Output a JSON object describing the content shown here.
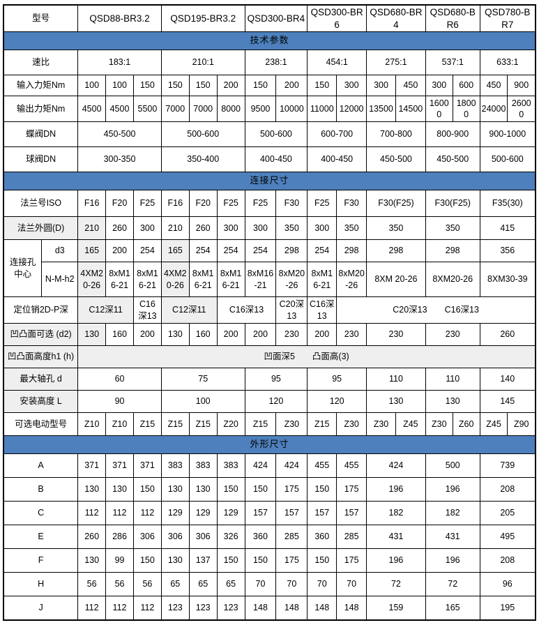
{
  "colors": {
    "section_blue": "#4d80bc",
    "cell_gray": "#efefef",
    "border_black": "#000000"
  },
  "table": {
    "rows": [
      {
        "kind": "data",
        "model_row": true,
        "label": "型号",
        "cells": [
          {
            "t": "QSD88-BR3.2",
            "s": 3
          },
          {
            "t": "QSD195-BR3.2",
            "s": 3
          },
          {
            "t": "QSD300-BR4",
            "s": 2
          },
          {
            "t": "QSD300-BR6",
            "s": 2
          },
          {
            "t": "QSD680-BR4",
            "s": 2
          },
          {
            "t": "QSD680-BR6",
            "s": 2
          },
          {
            "t": "QSD780-BR7",
            "s": 2
          }
        ]
      },
      {
        "kind": "section",
        "label": "技术参数"
      },
      {
        "kind": "data",
        "label": "速比",
        "cells": [
          {
            "t": "183:1",
            "s": 3
          },
          {
            "t": "210:1",
            "s": 3
          },
          {
            "t": "238:1",
            "s": 2
          },
          {
            "t": "454:1",
            "s": 2
          },
          {
            "t": "275:1",
            "s": 2
          },
          {
            "t": "537:1",
            "s": 2
          },
          {
            "t": "633:1",
            "s": 2
          }
        ]
      },
      {
        "kind": "data",
        "label": "输入力矩Nm",
        "cells": [
          {
            "t": "100"
          },
          {
            "t": "100"
          },
          {
            "t": "150"
          },
          {
            "t": "150"
          },
          {
            "t": "150"
          },
          {
            "t": "200"
          },
          {
            "t": "150"
          },
          {
            "t": "200"
          },
          {
            "t": "150"
          },
          {
            "t": "300"
          },
          {
            "t": "300"
          },
          {
            "t": "450"
          },
          {
            "t": "300"
          },
          {
            "t": "600"
          },
          {
            "t": "450"
          },
          {
            "t": "900"
          }
        ]
      },
      {
        "kind": "data",
        "label": "输出力矩Nm",
        "cells": [
          {
            "t": "4500"
          },
          {
            "t": "4500"
          },
          {
            "t": "5500"
          },
          {
            "t": "7000"
          },
          {
            "t": "7000"
          },
          {
            "t": "8000"
          },
          {
            "t": "9500"
          },
          {
            "t": "10000"
          },
          {
            "t": "11000"
          },
          {
            "t": "12000"
          },
          {
            "t": "13500"
          },
          {
            "t": "14500"
          },
          {
            "t": "16000"
          },
          {
            "t": "18000"
          },
          {
            "t": "24000"
          },
          {
            "t": "26000"
          }
        ]
      },
      {
        "kind": "data",
        "label": "蝶阀DN",
        "cells": [
          {
            "t": "450-500",
            "s": 3
          },
          {
            "t": "500-600",
            "s": 3
          },
          {
            "t": "500-600",
            "s": 2
          },
          {
            "t": "600-700",
            "s": 2
          },
          {
            "t": "700-800",
            "s": 2
          },
          {
            "t": "800-900",
            "s": 2
          },
          {
            "t": "900-1000",
            "s": 2
          }
        ]
      },
      {
        "kind": "data",
        "label": "球阀DN",
        "cells": [
          {
            "t": "300-350",
            "s": 3
          },
          {
            "t": "350-400",
            "s": 3
          },
          {
            "t": "400-450",
            "s": 2
          },
          {
            "t": "400-450",
            "s": 2
          },
          {
            "t": "450-500",
            "s": 2
          },
          {
            "t": "450-500",
            "s": 2
          },
          {
            "t": "500-600",
            "s": 2
          }
        ]
      },
      {
        "kind": "section",
        "label": "连接尺寸"
      },
      {
        "kind": "data",
        "label": "法兰号ISO",
        "cells": [
          {
            "t": "F16"
          },
          {
            "t": "F20"
          },
          {
            "t": "F25"
          },
          {
            "t": "F16"
          },
          {
            "t": "F20"
          },
          {
            "t": "F25"
          },
          {
            "t": "F25"
          },
          {
            "t": "F30"
          },
          {
            "t": "F25"
          },
          {
            "t": "F30"
          },
          {
            "t": "F30(F25)",
            "s": 2
          },
          {
            "t": "F30(F25)",
            "s": 2
          },
          {
            "t": "F35(30)",
            "s": 2
          }
        ]
      },
      {
        "kind": "data",
        "label": "法兰外圆(D)",
        "label_gray": true,
        "cells": [
          {
            "t": "210",
            "g": true
          },
          {
            "t": "260"
          },
          {
            "t": "300"
          },
          {
            "t": "210"
          },
          {
            "t": "260"
          },
          {
            "t": "300"
          },
          {
            "t": "300"
          },
          {
            "t": "350"
          },
          {
            "t": "300"
          },
          {
            "t": "350"
          },
          {
            "t": "350",
            "s": 2
          },
          {
            "t": "350",
            "s": 2
          },
          {
            "t": "415",
            "s": 2
          }
        ]
      },
      {
        "kind": "data",
        "group_label": "连接孔中心",
        "group_rowspan": 2,
        "sublabel": "d3",
        "cells": [
          {
            "t": "165",
            "g": true
          },
          {
            "t": "200"
          },
          {
            "t": "254"
          },
          {
            "t": "165",
            "g": true
          },
          {
            "t": "254"
          },
          {
            "t": "254"
          },
          {
            "t": "254"
          },
          {
            "t": "298"
          },
          {
            "t": "254"
          },
          {
            "t": "298"
          },
          {
            "t": "298",
            "s": 2
          },
          {
            "t": "298",
            "s": 2
          },
          {
            "t": "356",
            "s": 2
          }
        ]
      },
      {
        "kind": "data",
        "sublabel": "N-M-h2",
        "cells": [
          {
            "t": "4XM20-26",
            "g": true
          },
          {
            "t": "8xM16-21"
          },
          {
            "t": "8xM16-21"
          },
          {
            "t": "4XM20-26",
            "g": true
          },
          {
            "t": "8xM16-21"
          },
          {
            "t": "8xM16-21"
          },
          {
            "t": "8xM16-21"
          },
          {
            "t": "8xM20-26"
          },
          {
            "t": "8xM16-21"
          },
          {
            "t": "8xM20-26"
          },
          {
            "t": "8XM 20-26",
            "s": 2
          },
          {
            "t": "8XM20-26",
            "s": 2
          },
          {
            "t": "8XM30-39",
            "s": 2
          }
        ]
      },
      {
        "kind": "data",
        "label": "定位销2D-P深",
        "cells": [
          {
            "t": "C12深11",
            "s": 2,
            "g": true
          },
          {
            "t": "C16深13"
          },
          {
            "t": "C12深11",
            "s": 2,
            "g": true
          },
          {
            "t": "C16深13",
            "s": 2
          },
          {
            "t": "C20深13"
          },
          {
            "t": "C16深13"
          },
          {
            "t": "C20深13　　C16深13",
            "s": 7
          }
        ]
      },
      {
        "kind": "data",
        "label": "凹凸面可选 (d2)",
        "label_gray": true,
        "cells": [
          {
            "t": "130",
            "g": true
          },
          {
            "t": "160"
          },
          {
            "t": "200"
          },
          {
            "t": "130"
          },
          {
            "t": "160"
          },
          {
            "t": "200"
          },
          {
            "t": "200"
          },
          {
            "t": "230"
          },
          {
            "t": "200"
          },
          {
            "t": "230"
          },
          {
            "t": "230",
            "s": 2
          },
          {
            "t": "230",
            "s": 2
          },
          {
            "t": "260",
            "s": 2
          }
        ]
      },
      {
        "kind": "data",
        "label": "凹凸面高度h1 (h)",
        "label_gray": true,
        "cells": [
          {
            "t": "凹面深5　　凸面高(3)",
            "s": 16,
            "g": true
          }
        ]
      },
      {
        "kind": "data",
        "label": "最大轴孔 d",
        "label_gray": true,
        "cells": [
          {
            "t": "60",
            "s": 3
          },
          {
            "t": "75",
            "s": 3
          },
          {
            "t": "95",
            "s": 2
          },
          {
            "t": "95",
            "s": 2
          },
          {
            "t": "110",
            "s": 2
          },
          {
            "t": "110",
            "s": 2
          },
          {
            "t": "140",
            "s": 2
          }
        ]
      },
      {
        "kind": "data",
        "label": "安装高度 L",
        "label_gray": true,
        "cells": [
          {
            "t": "90",
            "s": 3
          },
          {
            "t": "100",
            "s": 3
          },
          {
            "t": "120",
            "s": 2
          },
          {
            "t": "120",
            "s": 2
          },
          {
            "t": "130",
            "s": 2
          },
          {
            "t": "130",
            "s": 2
          },
          {
            "t": "145",
            "s": 2
          }
        ]
      },
      {
        "kind": "data",
        "label": "可选电动型号",
        "cells": [
          {
            "t": "Z10"
          },
          {
            "t": "Z10"
          },
          {
            "t": "Z15"
          },
          {
            "t": "Z15"
          },
          {
            "t": "Z15"
          },
          {
            "t": "Z20"
          },
          {
            "t": "Z15"
          },
          {
            "t": "Z30"
          },
          {
            "t": "Z15"
          },
          {
            "t": "Z30"
          },
          {
            "t": "Z30"
          },
          {
            "t": "Z45"
          },
          {
            "t": "Z30"
          },
          {
            "t": "Z60"
          },
          {
            "t": "Z45"
          },
          {
            "t": "Z90"
          }
        ]
      },
      {
        "kind": "section",
        "label": "外形尺寸"
      },
      {
        "kind": "data",
        "label": "A",
        "cells": [
          {
            "t": "371"
          },
          {
            "t": "371"
          },
          {
            "t": "371"
          },
          {
            "t": "383"
          },
          {
            "t": "383"
          },
          {
            "t": "383"
          },
          {
            "t": "424"
          },
          {
            "t": "424"
          },
          {
            "t": "455"
          },
          {
            "t": "455"
          },
          {
            "t": "424",
            "s": 2
          },
          {
            "t": "500",
            "s": 2
          },
          {
            "t": "739",
            "s": 2
          }
        ]
      },
      {
        "kind": "data",
        "label": "B",
        "cells": [
          {
            "t": "130"
          },
          {
            "t": "130"
          },
          {
            "t": "150"
          },
          {
            "t": "130"
          },
          {
            "t": "130"
          },
          {
            "t": "150"
          },
          {
            "t": "150"
          },
          {
            "t": "175"
          },
          {
            "t": "150"
          },
          {
            "t": "175"
          },
          {
            "t": "196",
            "s": 2
          },
          {
            "t": "196",
            "s": 2
          },
          {
            "t": "208",
            "s": 2
          }
        ]
      },
      {
        "kind": "data",
        "label": "C",
        "cells": [
          {
            "t": "112"
          },
          {
            "t": "112"
          },
          {
            "t": "112"
          },
          {
            "t": "129"
          },
          {
            "t": "129"
          },
          {
            "t": "129"
          },
          {
            "t": "157"
          },
          {
            "t": "157"
          },
          {
            "t": "157"
          },
          {
            "t": "157"
          },
          {
            "t": "182",
            "s": 2
          },
          {
            "t": "182",
            "s": 2
          },
          {
            "t": "205",
            "s": 2
          }
        ]
      },
      {
        "kind": "data",
        "label": "E",
        "cells": [
          {
            "t": "260"
          },
          {
            "t": "286"
          },
          {
            "t": "306"
          },
          {
            "t": "306"
          },
          {
            "t": "306"
          },
          {
            "t": "326"
          },
          {
            "t": "360"
          },
          {
            "t": "285"
          },
          {
            "t": "360"
          },
          {
            "t": "285"
          },
          {
            "t": "431",
            "s": 2
          },
          {
            "t": "431",
            "s": 2
          },
          {
            "t": "495",
            "s": 2
          }
        ]
      },
      {
        "kind": "data",
        "label": "F",
        "cells": [
          {
            "t": "130"
          },
          {
            "t": "99"
          },
          {
            "t": "150"
          },
          {
            "t": "130"
          },
          {
            "t": "137"
          },
          {
            "t": "150"
          },
          {
            "t": "150"
          },
          {
            "t": "175"
          },
          {
            "t": "150"
          },
          {
            "t": "175"
          },
          {
            "t": "196",
            "s": 2
          },
          {
            "t": "196",
            "s": 2
          },
          {
            "t": "208",
            "s": 2
          }
        ]
      },
      {
        "kind": "data",
        "label": "H",
        "cells": [
          {
            "t": "56"
          },
          {
            "t": "56"
          },
          {
            "t": "56"
          },
          {
            "t": "65"
          },
          {
            "t": "65"
          },
          {
            "t": "65"
          },
          {
            "t": "70"
          },
          {
            "t": "70"
          },
          {
            "t": "70"
          },
          {
            "t": "70"
          },
          {
            "t": "72",
            "s": 2
          },
          {
            "t": "72",
            "s": 2
          },
          {
            "t": "96",
            "s": 2
          }
        ]
      },
      {
        "kind": "data",
        "label": "J",
        "cells": [
          {
            "t": "112"
          },
          {
            "t": "112"
          },
          {
            "t": "112"
          },
          {
            "t": "123"
          },
          {
            "t": "123"
          },
          {
            "t": "123"
          },
          {
            "t": "148"
          },
          {
            "t": "148"
          },
          {
            "t": "148"
          },
          {
            "t": "148"
          },
          {
            "t": "159",
            "s": 2
          },
          {
            "t": "165",
            "s": 2
          },
          {
            "t": "195",
            "s": 2
          }
        ]
      }
    ]
  }
}
